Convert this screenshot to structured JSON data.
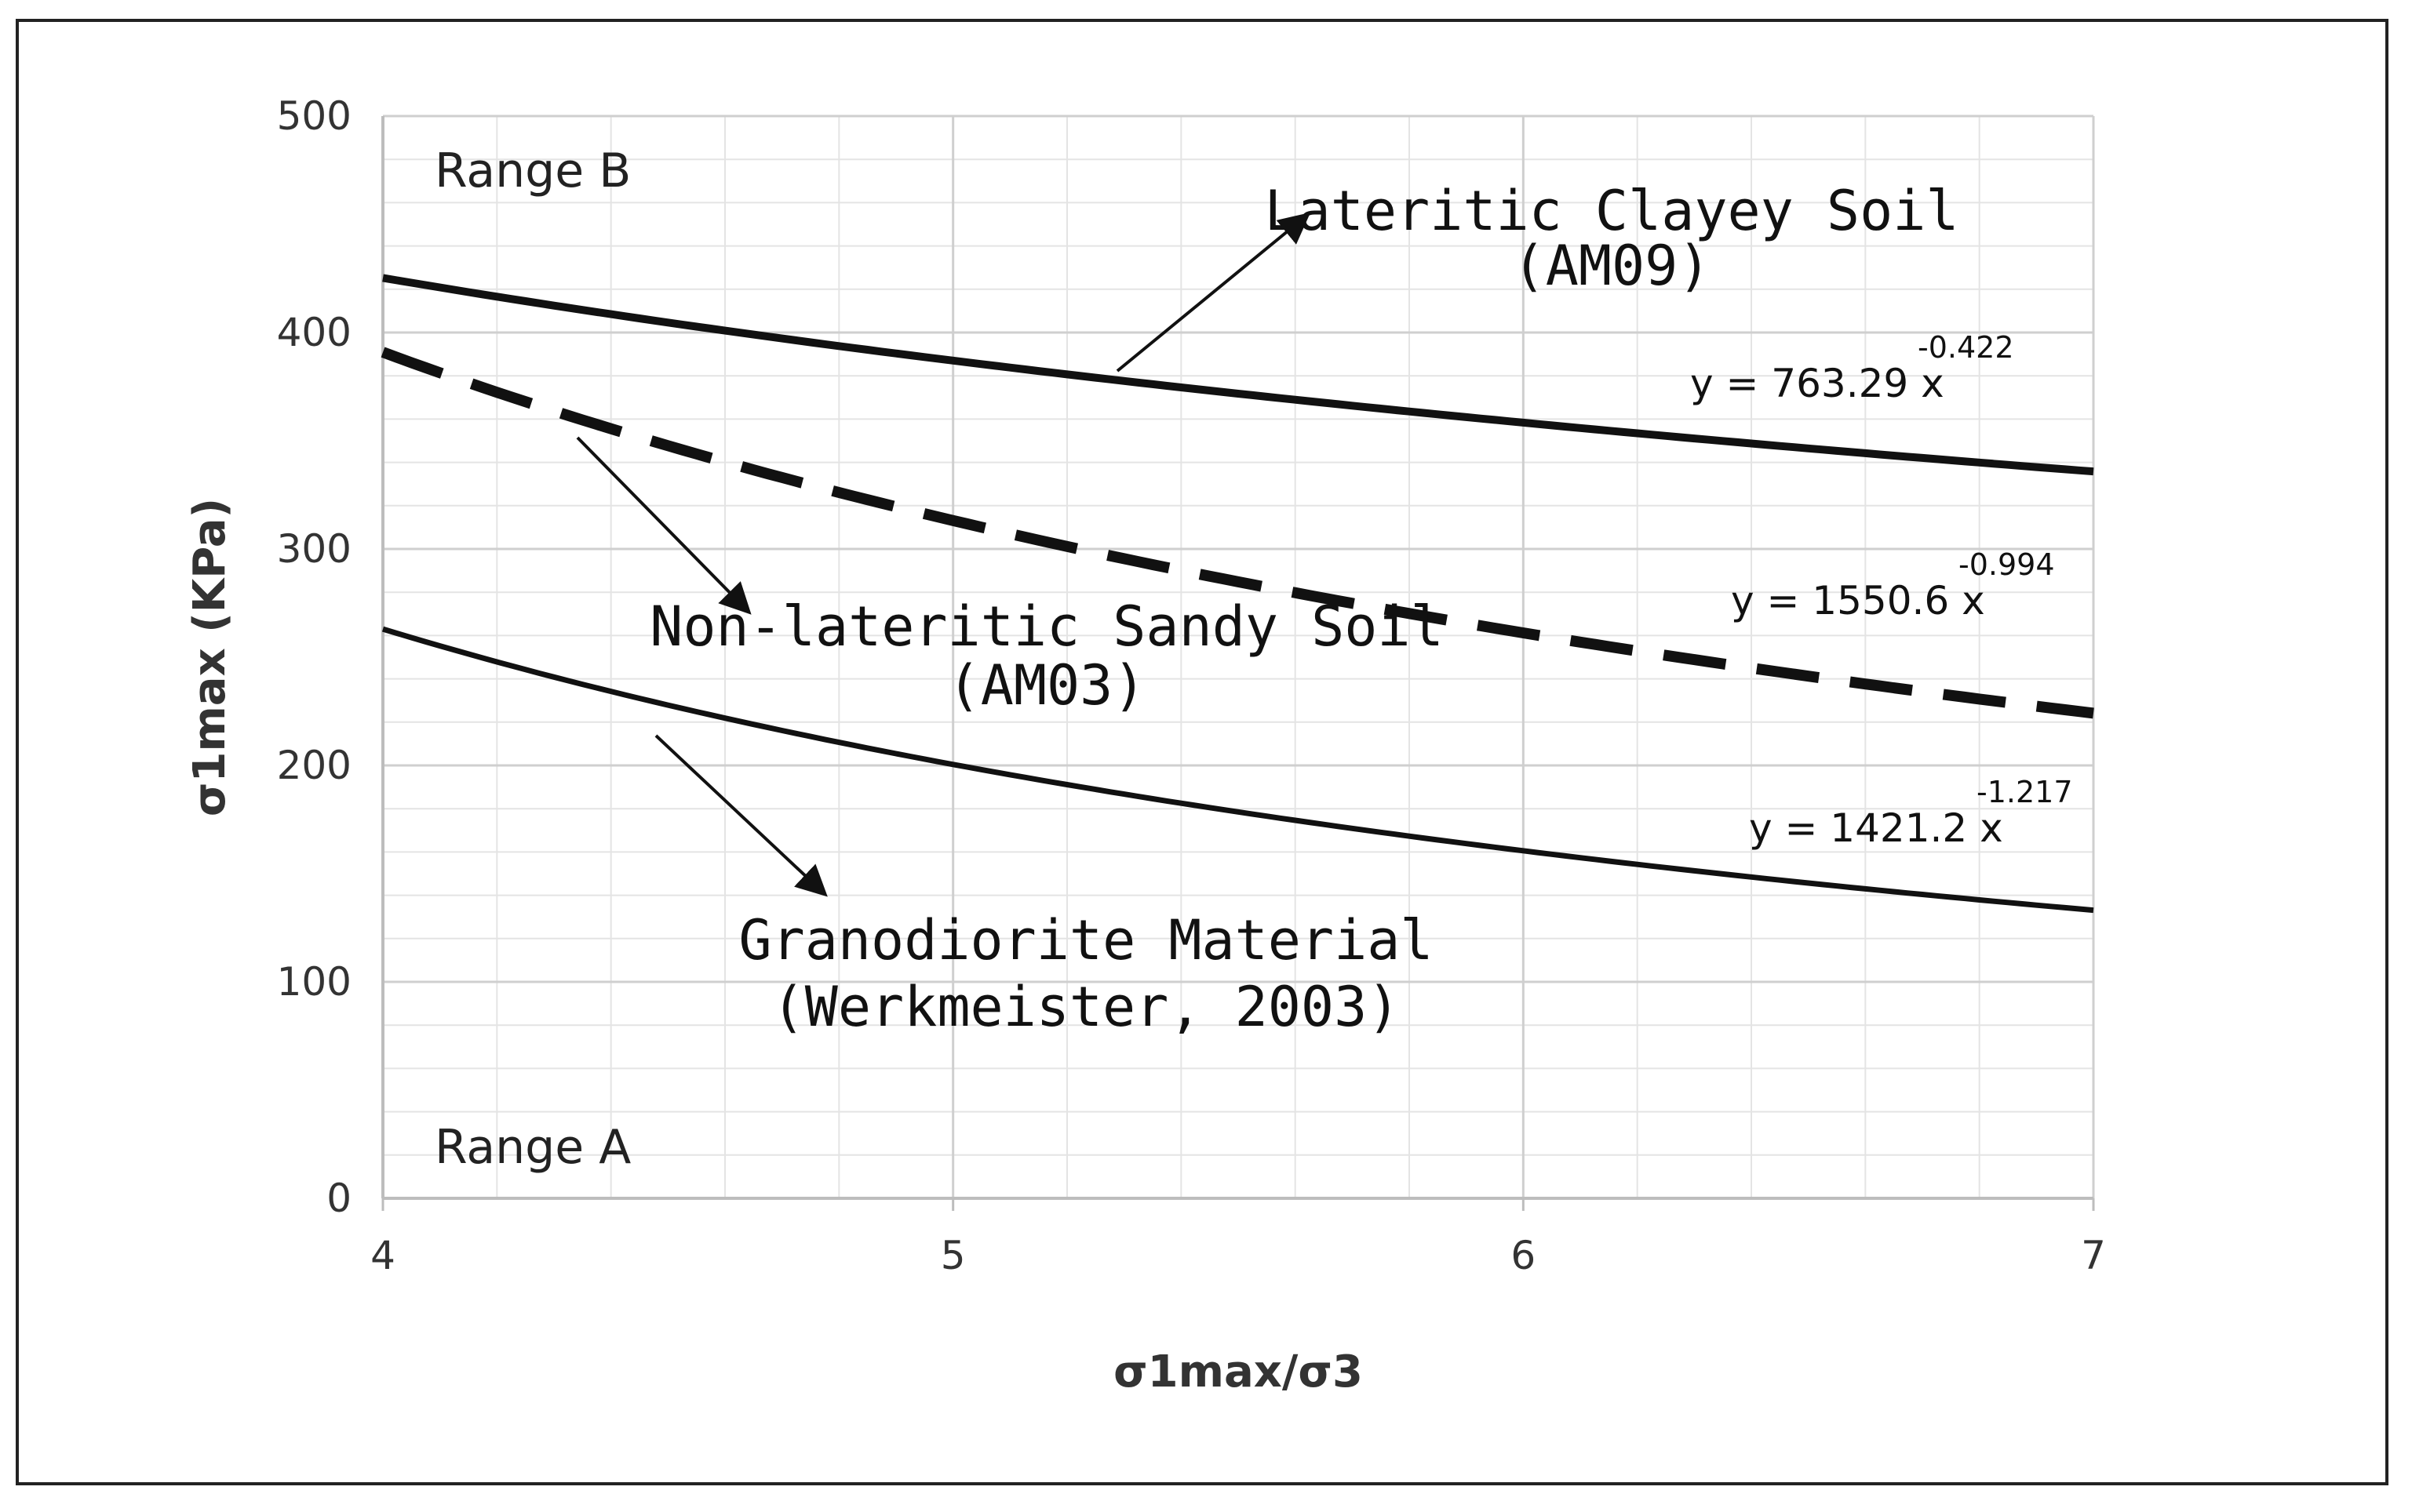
{
  "chart_data": {
    "type": "line",
    "title": "",
    "xlabel": "σ1max/σ3",
    "ylabel": "σ1max (KPa)",
    "xlim": [
      4,
      7
    ],
    "ylim": [
      0,
      500
    ],
    "x_ticks": [
      "4",
      "5",
      "6",
      "7"
    ],
    "y_ticks": [
      "0",
      "100",
      "200",
      "300",
      "400",
      "500"
    ],
    "grid": true,
    "series": [
      {
        "name": "Lateritic Clayey Soil (AM09)",
        "label_line1": "Lateritic Clayey Soil",
        "label_line2": "(AM09)",
        "style": "solid-thick",
        "coefficient": 763.29,
        "exponent": -0.422,
        "equation_text": "y = 763.29 x",
        "equation_exp": "-0.422",
        "x": [
          4,
          5,
          6,
          7
        ],
        "values": [
          425,
          386,
          358,
          335
        ]
      },
      {
        "name": "Non-lateritic Sandy Soil (AM03)",
        "label_line1": "Non-lateritic Sandy Soil",
        "label_line2": "(AM03)",
        "style": "dashed-thick",
        "coefficient": 1550.6,
        "exponent": -0.994,
        "equation_text": "y = 1550.6 x",
        "equation_exp": "-0.994",
        "x": [
          4,
          5,
          6,
          7
        ],
        "values": [
          390,
          313,
          261,
          223
        ]
      },
      {
        "name": "Granodiorite Material (Werkmeister, 2003)",
        "label_line1": "Granodiorite Material",
        "label_line2": "(Werkmeister, 2003)",
        "style": "solid",
        "coefficient": 1421.2,
        "exponent": -1.217,
        "equation_text": "y = 1421.2 x",
        "equation_exp": "-1.217",
        "x": [
          4,
          5,
          6,
          7
        ],
        "values": [
          263,
          201,
          161,
          132
        ]
      }
    ],
    "annotations": {
      "range_b": "Range B",
      "range_a": "Range A"
    }
  }
}
